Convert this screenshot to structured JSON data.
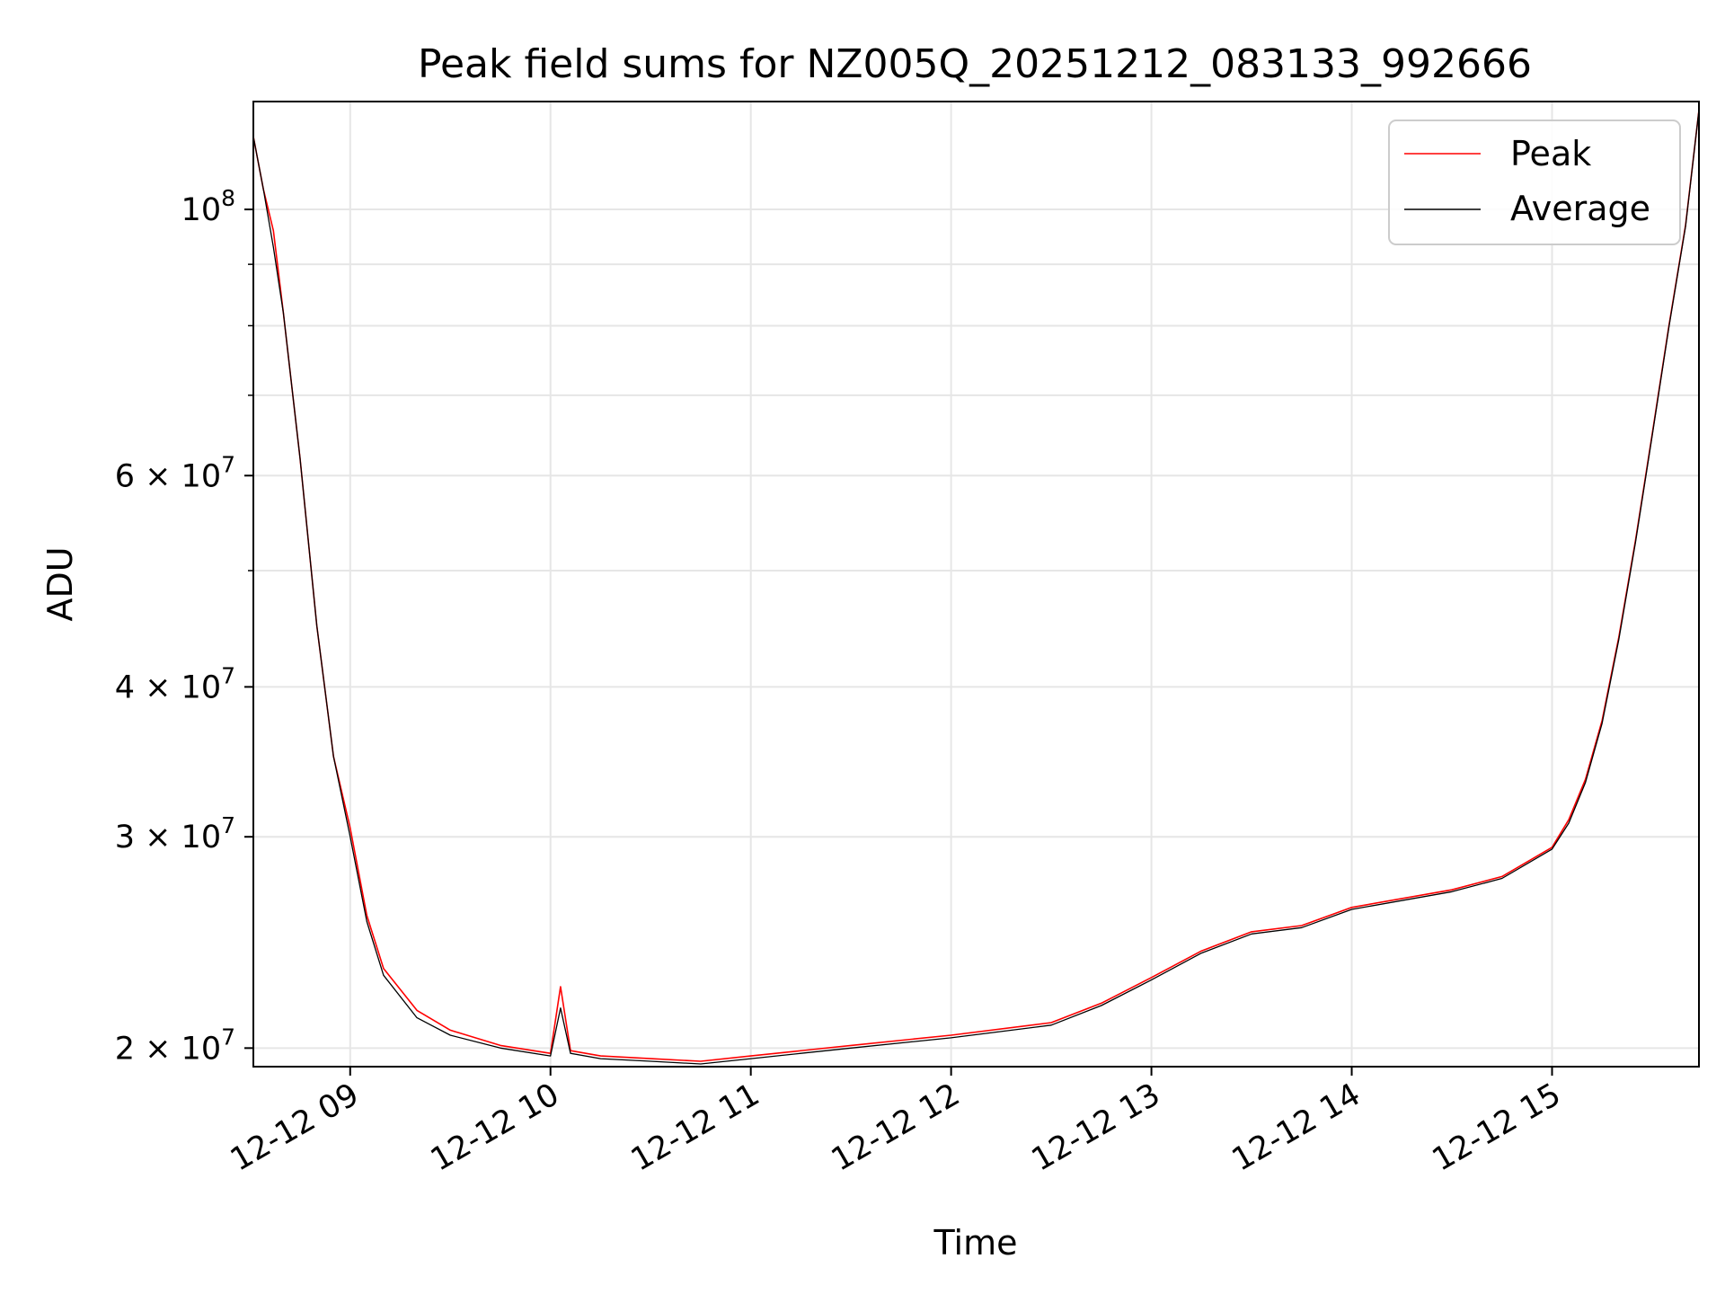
{
  "chart_data": {
    "type": "line",
    "title": "Peak field sums for NZ005Q_20251212_083133_992666",
    "xlabel": "Time",
    "ylabel": "ADU",
    "yscale": "log",
    "ylim": [
      19300000,
      123000000
    ],
    "xlim": [
      "2025-12-12 08:31",
      "2025-12-12 15:44"
    ],
    "grid": true,
    "legend_position": "upper-right",
    "x_ticks": [
      {
        "value": "2025-12-12 09:00",
        "label": "12-12 09"
      },
      {
        "value": "2025-12-12 10:00",
        "label": "12-12 10"
      },
      {
        "value": "2025-12-12 11:00",
        "label": "12-12 11"
      },
      {
        "value": "2025-12-12 12:00",
        "label": "12-12 12"
      },
      {
        "value": "2025-12-12 13:00",
        "label": "12-12 13"
      },
      {
        "value": "2025-12-12 14:00",
        "label": "12-12 14"
      },
      {
        "value": "2025-12-12 15:00",
        "label": "12-12 15"
      }
    ],
    "y_ticks": [
      {
        "value": 20000000,
        "label": "2 × 10",
        "exp": "7"
      },
      {
        "value": 30000000,
        "label": "3 × 10",
        "exp": "7"
      },
      {
        "value": 40000000,
        "label": "4 × 10",
        "exp": "7"
      },
      {
        "value": 60000000,
        "label": "6 × 10",
        "exp": "7"
      },
      {
        "value": 100000000,
        "label": "10",
        "exp": "8"
      }
    ],
    "y_minor_ticks": [
      50000000,
      70000000,
      80000000,
      90000000
    ],
    "series": [
      {
        "name": "Peak",
        "color": "#ff0000",
        "points": [
          [
            "2025-12-12 08:31",
            115000000
          ],
          [
            "2025-12-12 08:34",
            104000000
          ],
          [
            "2025-12-12 08:37",
            96000000
          ],
          [
            "2025-12-12 08:40",
            82000000
          ],
          [
            "2025-12-12 08:45",
            62000000
          ],
          [
            "2025-12-12 08:50",
            45000000
          ],
          [
            "2025-12-12 08:55",
            35000000
          ],
          [
            "2025-12-12 09:00",
            30500000
          ],
          [
            "2025-12-12 09:05",
            25800000
          ],
          [
            "2025-12-12 09:10",
            23300000
          ],
          [
            "2025-12-12 09:20",
            21500000
          ],
          [
            "2025-12-12 09:30",
            20700000
          ],
          [
            "2025-12-12 09:45",
            20100000
          ],
          [
            "2025-12-12 10:00",
            19800000
          ],
          [
            "2025-12-12 10:03",
            22500000
          ],
          [
            "2025-12-12 10:06",
            19900000
          ],
          [
            "2025-12-12 10:15",
            19700000
          ],
          [
            "2025-12-12 10:30",
            19600000
          ],
          [
            "2025-12-12 10:45",
            19500000
          ],
          [
            "2025-12-12 11:00",
            19700000
          ],
          [
            "2025-12-12 11:30",
            20100000
          ],
          [
            "2025-12-12 12:00",
            20500000
          ],
          [
            "2025-12-12 12:30",
            21000000
          ],
          [
            "2025-12-12 12:45",
            21800000
          ],
          [
            "2025-12-12 13:00",
            22900000
          ],
          [
            "2025-12-12 13:15",
            24100000
          ],
          [
            "2025-12-12 13:30",
            25000000
          ],
          [
            "2025-12-12 13:45",
            25300000
          ],
          [
            "2025-12-12 14:00",
            26200000
          ],
          [
            "2025-12-12 14:30",
            27100000
          ],
          [
            "2025-12-12 14:45",
            27800000
          ],
          [
            "2025-12-12 15:00",
            29400000
          ],
          [
            "2025-12-12 15:05",
            31000000
          ],
          [
            "2025-12-12 15:10",
            33500000
          ],
          [
            "2025-12-12 15:15",
            37500000
          ],
          [
            "2025-12-12 15:20",
            44000000
          ],
          [
            "2025-12-12 15:25",
            53000000
          ],
          [
            "2025-12-12 15:30",
            65000000
          ],
          [
            "2025-12-12 15:35",
            80000000
          ],
          [
            "2025-12-12 15:40",
            97000000
          ],
          [
            "2025-12-12 15:44",
            121000000
          ]
        ]
      },
      {
        "name": "Average",
        "color": "#000000",
        "points": [
          [
            "2025-12-12 08:31",
            115000000
          ],
          [
            "2025-12-12 08:34",
            104000000
          ],
          [
            "2025-12-12 08:37",
            93000000
          ],
          [
            "2025-12-12 08:40",
            82000000
          ],
          [
            "2025-12-12 08:45",
            62000000
          ],
          [
            "2025-12-12 08:50",
            45000000
          ],
          [
            "2025-12-12 08:55",
            35000000
          ],
          [
            "2025-12-12 09:00",
            30000000
          ],
          [
            "2025-12-12 09:05",
            25500000
          ],
          [
            "2025-12-12 09:10",
            23000000
          ],
          [
            "2025-12-12 09:20",
            21200000
          ],
          [
            "2025-12-12 09:30",
            20500000
          ],
          [
            "2025-12-12 09:45",
            20000000
          ],
          [
            "2025-12-12 10:00",
            19700000
          ],
          [
            "2025-12-12 10:03",
            21600000
          ],
          [
            "2025-12-12 10:06",
            19800000
          ],
          [
            "2025-12-12 10:15",
            19600000
          ],
          [
            "2025-12-12 10:30",
            19500000
          ],
          [
            "2025-12-12 10:45",
            19400000
          ],
          [
            "2025-12-12 11:00",
            19600000
          ],
          [
            "2025-12-12 11:30",
            20000000
          ],
          [
            "2025-12-12 12:00",
            20400000
          ],
          [
            "2025-12-12 12:30",
            20900000
          ],
          [
            "2025-12-12 12:45",
            21700000
          ],
          [
            "2025-12-12 13:00",
            22800000
          ],
          [
            "2025-12-12 13:15",
            24000000
          ],
          [
            "2025-12-12 13:30",
            24900000
          ],
          [
            "2025-12-12 13:45",
            25200000
          ],
          [
            "2025-12-12 14:00",
            26100000
          ],
          [
            "2025-12-12 14:30",
            27000000
          ],
          [
            "2025-12-12 14:45",
            27700000
          ],
          [
            "2025-12-12 15:00",
            29300000
          ],
          [
            "2025-12-12 15:05",
            30800000
          ],
          [
            "2025-12-12 15:10",
            33300000
          ],
          [
            "2025-12-12 15:15",
            37300000
          ],
          [
            "2025-12-12 15:20",
            43800000
          ],
          [
            "2025-12-12 15:25",
            52800000
          ],
          [
            "2025-12-12 15:30",
            64800000
          ],
          [
            "2025-12-12 15:35",
            79800000
          ],
          [
            "2025-12-12 15:40",
            96800000
          ],
          [
            "2025-12-12 15:44",
            121000000
          ]
        ]
      }
    ]
  }
}
